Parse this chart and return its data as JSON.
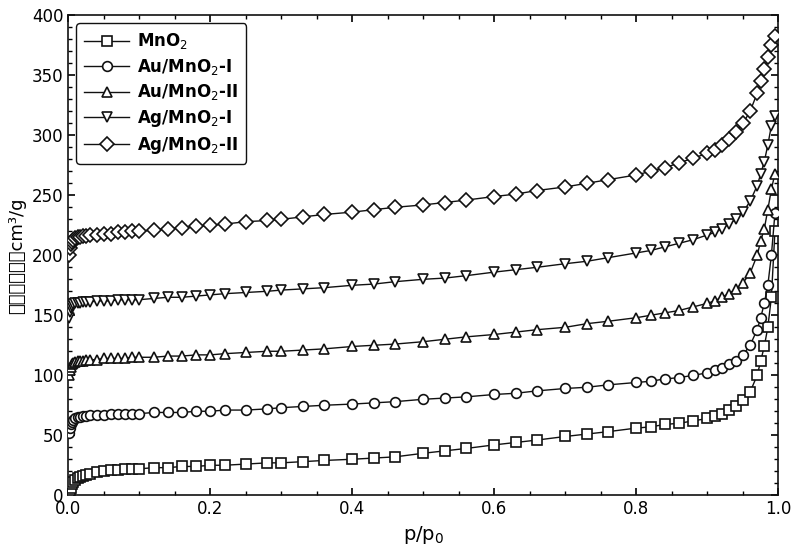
{
  "xlabel": "p/p₀",
  "ylabel": "吸脱附体积／cm³/g",
  "xlim": [
    0,
    1.0
  ],
  "ylim": [
    0,
    400
  ],
  "yticks": [
    0,
    50,
    100,
    150,
    200,
    250,
    300,
    350,
    400
  ],
  "xticks": [
    0.0,
    0.2,
    0.4,
    0.6,
    0.8,
    1.0
  ],
  "series": [
    {
      "label": "MnO$_2$",
      "marker": "s",
      "x": [
        0.001,
        0.002,
        0.003,
        0.005,
        0.007,
        0.01,
        0.013,
        0.016,
        0.02,
        0.025,
        0.03,
        0.04,
        0.05,
        0.06,
        0.07,
        0.08,
        0.09,
        0.1,
        0.12,
        0.14,
        0.16,
        0.18,
        0.2,
        0.22,
        0.25,
        0.28,
        0.3,
        0.33,
        0.36,
        0.4,
        0.43,
        0.46,
        0.5,
        0.53,
        0.56,
        0.6,
        0.63,
        0.66,
        0.7,
        0.73,
        0.76,
        0.8,
        0.82,
        0.84,
        0.86,
        0.88,
        0.9,
        0.91,
        0.92,
        0.93,
        0.94,
        0.95,
        0.96,
        0.97,
        0.975,
        0.98,
        0.985,
        0.99,
        0.995
      ],
      "y": [
        2,
        4,
        6,
        9,
        11,
        13,
        14,
        15,
        16,
        17,
        18,
        19,
        20,
        21,
        21,
        22,
        22,
        22,
        23,
        23,
        24,
        24,
        25,
        25,
        26,
        27,
        27,
        28,
        29,
        30,
        31,
        32,
        35,
        37,
        39,
        42,
        44,
        46,
        49,
        51,
        53,
        56,
        57,
        59,
        60,
        62,
        64,
        66,
        68,
        71,
        74,
        79,
        86,
        100,
        112,
        124,
        140,
        165,
        220
      ]
    },
    {
      "label": "Au/MnO$_2$-I",
      "marker": "o",
      "x": [
        0.001,
        0.002,
        0.003,
        0.005,
        0.007,
        0.01,
        0.013,
        0.016,
        0.02,
        0.025,
        0.03,
        0.04,
        0.05,
        0.06,
        0.07,
        0.08,
        0.09,
        0.1,
        0.12,
        0.14,
        0.16,
        0.18,
        0.2,
        0.22,
        0.25,
        0.28,
        0.3,
        0.33,
        0.36,
        0.4,
        0.43,
        0.46,
        0.5,
        0.53,
        0.56,
        0.6,
        0.63,
        0.66,
        0.7,
        0.73,
        0.76,
        0.8,
        0.82,
        0.84,
        0.86,
        0.88,
        0.9,
        0.91,
        0.92,
        0.93,
        0.94,
        0.95,
        0.96,
        0.97,
        0.975,
        0.98,
        0.985,
        0.99,
        0.995
      ],
      "y": [
        52,
        56,
        59,
        61,
        63,
        64,
        65,
        65,
        66,
        66,
        67,
        67,
        67,
        68,
        68,
        68,
        68,
        68,
        69,
        69,
        69,
        70,
        70,
        71,
        71,
        72,
        73,
        74,
        75,
        76,
        77,
        78,
        80,
        81,
        82,
        84,
        85,
        87,
        89,
        90,
        92,
        94,
        95,
        97,
        98,
        100,
        102,
        104,
        106,
        109,
        112,
        117,
        125,
        138,
        148,
        160,
        175,
        200,
        235
      ]
    },
    {
      "label": "Au/MnO$_2$-II",
      "marker": "^",
      "x": [
        0.001,
        0.002,
        0.003,
        0.005,
        0.007,
        0.01,
        0.013,
        0.016,
        0.02,
        0.025,
        0.03,
        0.04,
        0.05,
        0.06,
        0.07,
        0.08,
        0.09,
        0.1,
        0.12,
        0.14,
        0.16,
        0.18,
        0.2,
        0.22,
        0.25,
        0.28,
        0.3,
        0.33,
        0.36,
        0.4,
        0.43,
        0.46,
        0.5,
        0.53,
        0.56,
        0.6,
        0.63,
        0.66,
        0.7,
        0.73,
        0.76,
        0.8,
        0.82,
        0.84,
        0.86,
        0.88,
        0.9,
        0.91,
        0.92,
        0.93,
        0.94,
        0.95,
        0.96,
        0.97,
        0.975,
        0.98,
        0.985,
        0.99,
        0.995
      ],
      "y": [
        100,
        104,
        107,
        109,
        110,
        111,
        112,
        112,
        112,
        113,
        113,
        113,
        114,
        114,
        114,
        114,
        115,
        115,
        115,
        116,
        116,
        117,
        117,
        118,
        119,
        120,
        120,
        121,
        122,
        124,
        125,
        126,
        128,
        130,
        132,
        134,
        136,
        138,
        140,
        143,
        145,
        148,
        150,
        152,
        154,
        157,
        160,
        162,
        165,
        168,
        172,
        177,
        185,
        200,
        212,
        222,
        238,
        255,
        268
      ]
    },
    {
      "label": "Ag/MnO$_2$-I",
      "marker": "v",
      "x": [
        0.001,
        0.002,
        0.003,
        0.005,
        0.007,
        0.01,
        0.013,
        0.016,
        0.02,
        0.025,
        0.03,
        0.04,
        0.05,
        0.06,
        0.07,
        0.08,
        0.09,
        0.1,
        0.12,
        0.14,
        0.16,
        0.18,
        0.2,
        0.22,
        0.25,
        0.28,
        0.3,
        0.33,
        0.36,
        0.4,
        0.43,
        0.46,
        0.5,
        0.53,
        0.56,
        0.6,
        0.63,
        0.66,
        0.7,
        0.73,
        0.76,
        0.8,
        0.82,
        0.84,
        0.86,
        0.88,
        0.9,
        0.91,
        0.92,
        0.93,
        0.94,
        0.95,
        0.96,
        0.97,
        0.975,
        0.98,
        0.985,
        0.99,
        0.995
      ],
      "y": [
        148,
        153,
        156,
        158,
        159,
        160,
        160,
        160,
        161,
        161,
        161,
        162,
        162,
        162,
        163,
        163,
        163,
        163,
        164,
        165,
        165,
        166,
        167,
        168,
        169,
        170,
        171,
        172,
        173,
        175,
        176,
        178,
        180,
        181,
        183,
        186,
        188,
        190,
        193,
        195,
        198,
        202,
        204,
        207,
        210,
        213,
        217,
        219,
        222,
        226,
        230,
        236,
        245,
        258,
        268,
        278,
        292,
        308,
        316
      ]
    },
    {
      "label": "Ag/MnO$_2$-II",
      "marker": "D",
      "x": [
        0.001,
        0.002,
        0.003,
        0.005,
        0.007,
        0.01,
        0.013,
        0.016,
        0.02,
        0.025,
        0.03,
        0.04,
        0.05,
        0.06,
        0.07,
        0.08,
        0.09,
        0.1,
        0.12,
        0.14,
        0.16,
        0.18,
        0.2,
        0.22,
        0.25,
        0.28,
        0.3,
        0.33,
        0.36,
        0.4,
        0.43,
        0.46,
        0.5,
        0.53,
        0.56,
        0.6,
        0.63,
        0.66,
        0.7,
        0.73,
        0.76,
        0.8,
        0.82,
        0.84,
        0.86,
        0.88,
        0.9,
        0.91,
        0.92,
        0.93,
        0.94,
        0.95,
        0.96,
        0.97,
        0.975,
        0.98,
        0.985,
        0.99,
        0.995
      ],
      "y": [
        200,
        206,
        209,
        211,
        213,
        214,
        215,
        215,
        216,
        216,
        217,
        217,
        218,
        218,
        219,
        219,
        220,
        220,
        221,
        222,
        223,
        224,
        225,
        226,
        228,
        229,
        230,
        232,
        234,
        236,
        238,
        240,
        242,
        244,
        246,
        249,
        251,
        254,
        257,
        260,
        263,
        267,
        270,
        273,
        277,
        281,
        285,
        288,
        292,
        297,
        303,
        310,
        320,
        335,
        345,
        355,
        365,
        375,
        383
      ]
    }
  ],
  "background_color": "#ffffff",
  "line_color": "#111111",
  "marker_size": 7,
  "line_width": 1.0,
  "markeredgewidth": 1.2
}
